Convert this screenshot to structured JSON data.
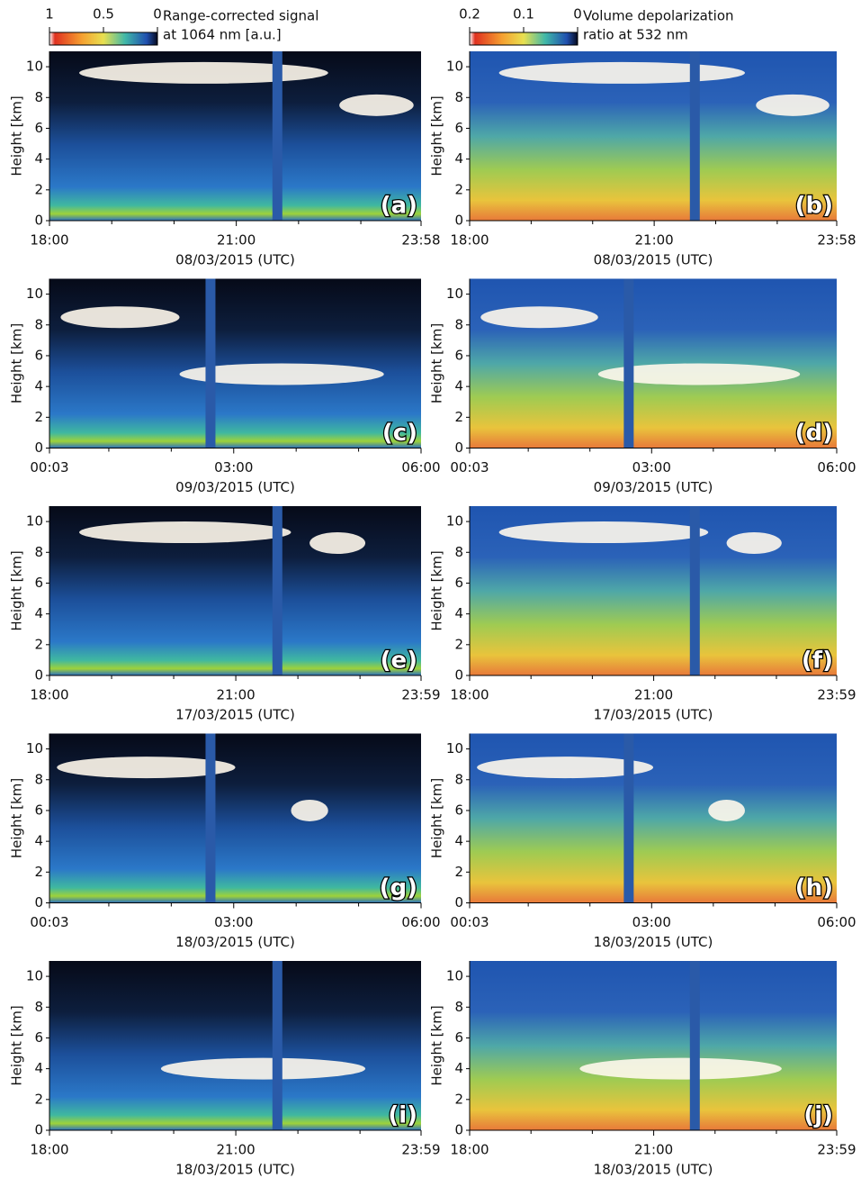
{
  "colorbars": [
    {
      "clim": [
        1,
        0
      ],
      "ticks": [
        1,
        0.5,
        0
      ],
      "label": [
        "Range-corrected signal",
        "at 1064 nm [a.u.]"
      ]
    },
    {
      "clim": [
        0.2,
        0
      ],
      "ticks": [
        0.2,
        0.1,
        0
      ],
      "label": [
        "Volume depolarization",
        "ratio at 532 nm"
      ]
    }
  ],
  "chart_data": [
    {
      "type": "heatmap",
      "panel_label": "(a)",
      "xlabel": "08/03/2015 (UTC)",
      "ylabel": "Height [km]",
      "xlim": [
        18,
        23.967
      ],
      "xticks": [
        {
          "value": 18,
          "label": "18:00"
        },
        {
          "value": 21,
          "label": "21:00"
        },
        {
          "value": 23.967,
          "label": "23:58"
        }
      ],
      "xminor": [
        19,
        20,
        22,
        23
      ],
      "ylim": [
        0,
        11
      ],
      "yticks": [
        0,
        2,
        4,
        6,
        8,
        10
      ]
    },
    {
      "type": "heatmap",
      "panel_label": "(b)",
      "xlabel": "08/03/2015 (UTC)",
      "ylabel": "Height [km]",
      "xlim": [
        18,
        23.967
      ],
      "xticks": [
        {
          "value": 18,
          "label": "18:00"
        },
        {
          "value": 21,
          "label": "21:00"
        },
        {
          "value": 23.967,
          "label": "23:58"
        }
      ],
      "xminor": [
        19,
        20,
        22,
        23
      ],
      "ylim": [
        0,
        11
      ],
      "yticks": [
        0,
        2,
        4,
        6,
        8,
        10
      ]
    },
    {
      "type": "heatmap",
      "panel_label": "(c)",
      "xlabel": "09/03/2015 (UTC)",
      "ylabel": "Height [km]",
      "xlim": [
        0.05,
        6
      ],
      "xticks": [
        {
          "value": 0.05,
          "label": "00:03"
        },
        {
          "value": 3,
          "label": "03:00"
        },
        {
          "value": 6,
          "label": "06:00"
        }
      ],
      "xminor": [
        1,
        2,
        4,
        5
      ],
      "ylim": [
        0,
        11
      ],
      "yticks": [
        0,
        2,
        4,
        6,
        8,
        10
      ]
    },
    {
      "type": "heatmap",
      "panel_label": "(d)",
      "xlabel": "09/03/2015 (UTC)",
      "ylabel": "Height [km]",
      "xlim": [
        0.05,
        6
      ],
      "xticks": [
        {
          "value": 0.05,
          "label": "00:03"
        },
        {
          "value": 3,
          "label": "03:00"
        },
        {
          "value": 6,
          "label": "06:00"
        }
      ],
      "xminor": [
        1,
        2,
        4,
        5
      ],
      "ylim": [
        0,
        11
      ],
      "yticks": [
        0,
        2,
        4,
        6,
        8,
        10
      ]
    },
    {
      "type": "heatmap",
      "panel_label": "(e)",
      "xlabel": "17/03/2015 (UTC)",
      "ylabel": "Height [km]",
      "xlim": [
        18,
        23.983
      ],
      "xticks": [
        {
          "value": 18,
          "label": "18:00"
        },
        {
          "value": 21,
          "label": "21:00"
        },
        {
          "value": 23.983,
          "label": "23:59"
        }
      ],
      "xminor": [
        19,
        20,
        22,
        23
      ],
      "ylim": [
        0,
        11
      ],
      "yticks": [
        0,
        2,
        4,
        6,
        8,
        10
      ]
    },
    {
      "type": "heatmap",
      "panel_label": "(f)",
      "xlabel": "17/03/2015 (UTC)",
      "ylabel": "Height [km]",
      "xlim": [
        18,
        23.983
      ],
      "xticks": [
        {
          "value": 18,
          "label": "18:00"
        },
        {
          "value": 21,
          "label": "21:00"
        },
        {
          "value": 23.983,
          "label": "23:59"
        }
      ],
      "xminor": [
        19,
        20,
        22,
        23
      ],
      "ylim": [
        0,
        11
      ],
      "yticks": [
        0,
        2,
        4,
        6,
        8,
        10
      ]
    },
    {
      "type": "heatmap",
      "panel_label": "(g)",
      "xlabel": "18/03/2015 (UTC)",
      "ylabel": "Height [km]",
      "xlim": [
        0.05,
        6
      ],
      "xticks": [
        {
          "value": 0.05,
          "label": "00:03"
        },
        {
          "value": 3,
          "label": "03:00"
        },
        {
          "value": 6,
          "label": "06:00"
        }
      ],
      "xminor": [
        1,
        2,
        4,
        5
      ],
      "ylim": [
        0,
        11
      ],
      "yticks": [
        0,
        2,
        4,
        6,
        8,
        10
      ]
    },
    {
      "type": "heatmap",
      "panel_label": "(h)",
      "xlabel": "18/03/2015 (UTC)",
      "ylabel": "Height [km]",
      "xlim": [
        0.05,
        6
      ],
      "xticks": [
        {
          "value": 0.05,
          "label": "00:03"
        },
        {
          "value": 3,
          "label": "03:00"
        },
        {
          "value": 6,
          "label": "06:00"
        }
      ],
      "xminor": [
        1,
        2,
        4,
        5
      ],
      "ylim": [
        0,
        11
      ],
      "yticks": [
        0,
        2,
        4,
        6,
        8,
        10
      ]
    },
    {
      "type": "heatmap",
      "panel_label": "(i)",
      "xlabel": "18/03/2015 (UTC)",
      "ylabel": "Height [km]",
      "xlim": [
        18,
        23.983
      ],
      "xticks": [
        {
          "value": 18,
          "label": "18:00"
        },
        {
          "value": 21,
          "label": "21:00"
        },
        {
          "value": 23.983,
          "label": "23:59"
        }
      ],
      "xminor": [
        19,
        20,
        22,
        23
      ],
      "ylim": [
        0,
        11
      ],
      "yticks": [
        0,
        2,
        4,
        6,
        8,
        10
      ]
    },
    {
      "type": "heatmap",
      "panel_label": "(j)",
      "xlabel": "18/03/2015 (UTC)",
      "ylabel": "Height [km]",
      "xlim": [
        18,
        23.983
      ],
      "xticks": [
        {
          "value": 18,
          "label": "18:00"
        },
        {
          "value": 21,
          "label": "21:00"
        },
        {
          "value": 23.983,
          "label": "23:59"
        }
      ],
      "xminor": [
        19,
        20,
        22,
        23
      ],
      "ylim": [
        0,
        11
      ],
      "yticks": [
        0,
        2,
        4,
        6,
        8,
        10
      ]
    }
  ]
}
